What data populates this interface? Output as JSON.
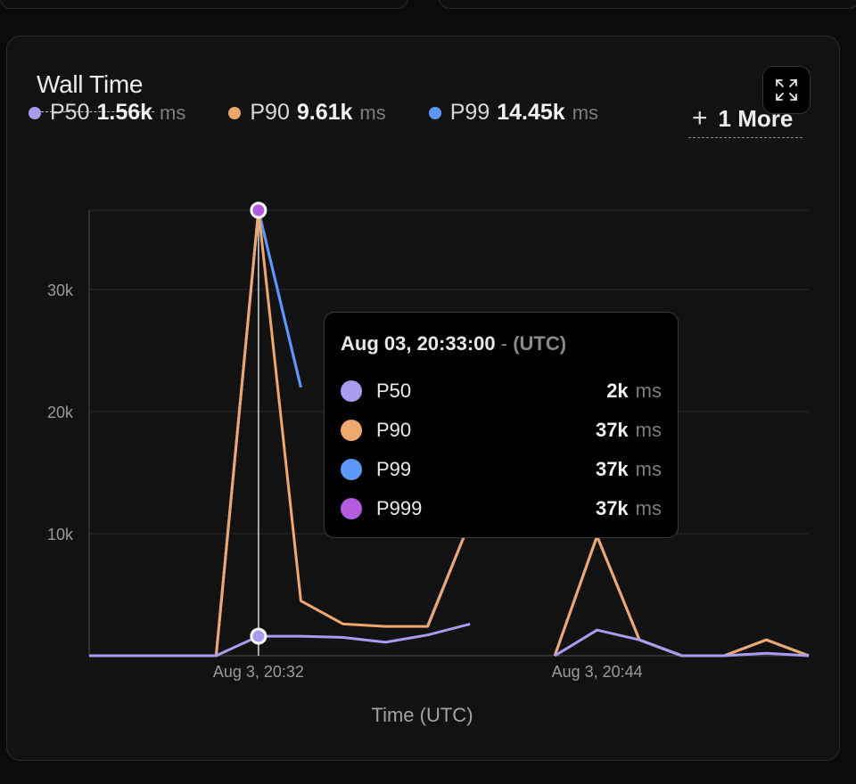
{
  "panel": {
    "title": "Wall Time"
  },
  "legend": [
    {
      "name": "P50",
      "value": "1.56k",
      "unit": "ms",
      "color": "#a89cf0"
    },
    {
      "name": "P90",
      "value": "9.61k",
      "unit": "ms",
      "color": "#eea76c"
    },
    {
      "name": "P99",
      "value": "14.45k",
      "unit": "ms",
      "color": "#5c97fa"
    }
  ],
  "more_label": "1 More",
  "tooltip": {
    "timestamp": "Aug 03, 20:33:00",
    "separator": "-",
    "timezone": "(UTC)",
    "rows": [
      {
        "name": "P50",
        "value": "2k",
        "unit": "ms",
        "color": "#a89cf0"
      },
      {
        "name": "P90",
        "value": "37k",
        "unit": "ms",
        "color": "#eea76c"
      },
      {
        "name": "P99",
        "value": "37k",
        "unit": "ms",
        "color": "#5c97fa"
      },
      {
        "name": "P999",
        "value": "37k",
        "unit": "ms",
        "color": "#b45be0"
      }
    ]
  },
  "chart_data": {
    "type": "line",
    "title": "Wall Time",
    "xlabel": "Time (UTC)",
    "ylabel": "",
    "ylim": [
      0,
      36500
    ],
    "y_ticks": [
      10000,
      20000,
      30000
    ],
    "y_tick_labels": [
      "10k",
      "20k",
      "30k"
    ],
    "x_tick_labels": [
      {
        "index": 4,
        "label": "Aug 3, 20:32"
      },
      {
        "index": 12,
        "label": "Aug 3, 20:44"
      }
    ],
    "hover_index": 4,
    "grid": true,
    "legend_position": "top",
    "series": [
      {
        "name": "P999",
        "color": "#b45be0",
        "values": [
          0,
          0,
          0,
          0,
          36500,
          22000,
          null,
          null,
          2500,
          11000,
          null,
          0,
          9800,
          1300,
          0,
          0,
          1300,
          0
        ]
      },
      {
        "name": "P99",
        "color": "#5c97fa",
        "values": [
          0,
          0,
          0,
          0,
          36500,
          22000,
          null,
          null,
          2500,
          11000,
          null,
          0,
          9800,
          1300,
          0,
          0,
          1300,
          0
        ]
      },
      {
        "name": "P90",
        "color": "#eea76c",
        "values": [
          0,
          0,
          0,
          0,
          36500,
          4500,
          2600,
          2400,
          2400,
          11000,
          null,
          0,
          9800,
          1300,
          0,
          0,
          1300,
          0
        ]
      },
      {
        "name": "P50",
        "color": "#a89cf0",
        "values": [
          0,
          0,
          0,
          0,
          1600,
          1600,
          1500,
          1100,
          1700,
          2600,
          null,
          0,
          2100,
          1300,
          0,
          0,
          200,
          0
        ]
      }
    ]
  }
}
